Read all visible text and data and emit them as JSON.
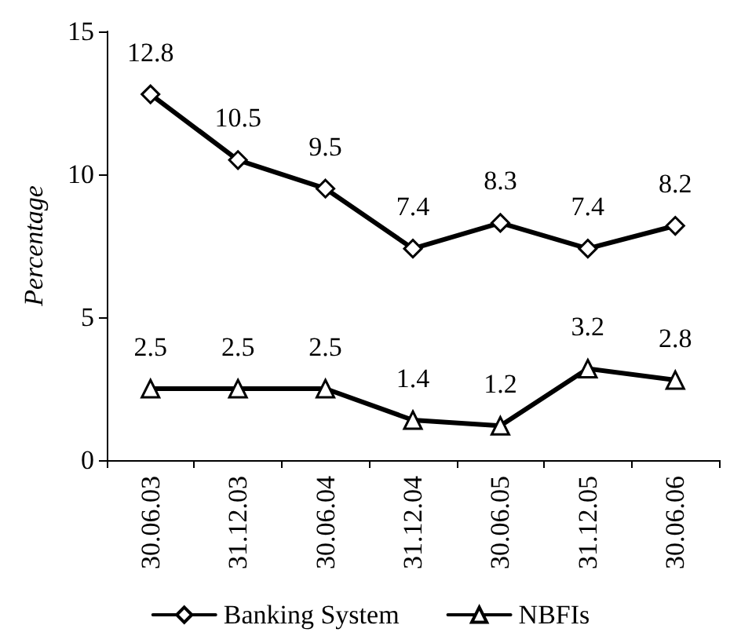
{
  "chart_data": {
    "type": "line",
    "ylabel": "Percentage",
    "categories": [
      "30.06.03",
      "31.12.03",
      "30.06.04",
      "31.12.04",
      "30.06.05",
      "31.12.05",
      "30.06.06"
    ],
    "series": [
      {
        "name": "Banking System",
        "color": "#000000",
        "marker": "diamond",
        "values": [
          12.8,
          10.5,
          9.5,
          7.4,
          8.3,
          7.4,
          8.2
        ]
      },
      {
        "name": "NBFIs",
        "color": "#000000",
        "marker": "triangle",
        "values": [
          2.5,
          2.5,
          2.5,
          1.4,
          1.2,
          3.2,
          2.8
        ]
      }
    ],
    "ylim": [
      0,
      15
    ],
    "yticks": [
      0,
      5,
      10,
      15
    ],
    "grid": false,
    "legend": "bottom",
    "data_labels": true,
    "line_style": "solid"
  }
}
